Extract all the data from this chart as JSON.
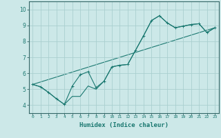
{
  "xlabel": "Humidex (Indice chaleur)",
  "ylabel": "",
  "bg_color": "#cce8e8",
  "grid_color": "#aacfcf",
  "line_color": "#1a7870",
  "xlim": [
    -0.5,
    23.5
  ],
  "ylim": [
    3.5,
    10.5
  ],
  "xticks": [
    0,
    1,
    2,
    3,
    4,
    5,
    6,
    7,
    8,
    9,
    10,
    11,
    12,
    13,
    14,
    15,
    16,
    17,
    18,
    19,
    20,
    21,
    22,
    23
  ],
  "yticks": [
    4,
    5,
    6,
    7,
    8,
    9,
    10
  ],
  "line1_x": [
    0,
    1,
    2,
    3,
    4,
    5,
    6,
    7,
    8,
    9,
    10,
    11,
    12,
    13,
    14,
    15,
    16,
    17,
    18,
    19,
    20,
    21,
    22,
    23
  ],
  "line1_y": [
    5.3,
    5.15,
    4.8,
    4.4,
    4.05,
    5.2,
    5.9,
    6.1,
    5.1,
    5.5,
    6.4,
    6.5,
    6.55,
    7.45,
    8.35,
    9.3,
    9.6,
    9.15,
    8.85,
    8.95,
    9.05,
    9.1,
    8.55,
    8.85
  ],
  "line2_x": [
    0,
    1,
    2,
    3,
    4,
    5,
    6,
    7,
    8,
    9,
    10,
    11,
    12,
    13,
    14,
    15,
    16,
    17,
    18,
    19,
    20,
    21,
    22,
    23
  ],
  "line2_y": [
    5.3,
    5.15,
    4.8,
    4.4,
    4.05,
    4.55,
    4.55,
    5.2,
    5.0,
    5.5,
    6.4,
    6.5,
    6.55,
    7.45,
    8.35,
    9.3,
    9.6,
    9.15,
    8.85,
    8.95,
    9.05,
    9.1,
    8.55,
    8.85
  ],
  "line3_x": [
    0,
    23
  ],
  "line3_y": [
    5.3,
    8.85
  ],
  "marker": "+",
  "markersize": 3,
  "linewidth": 0.8,
  "xlabel_fontsize": 6.5,
  "xtick_fontsize": 4.5,
  "ytick_fontsize": 5.5
}
